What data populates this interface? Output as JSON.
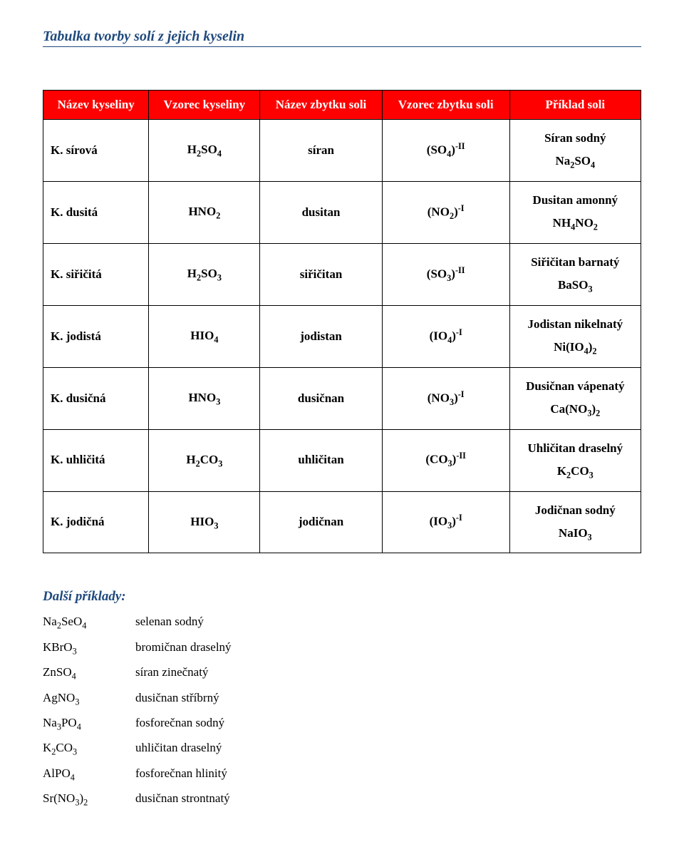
{
  "title": "Tabulka tvorby solí z jejich kyselin",
  "table": {
    "headers": [
      "Název kyseliny",
      "Vzorec kyseliny",
      "Název zbytku soli",
      "Vzorec zbytku soli",
      "Příklad soli"
    ],
    "rows": [
      {
        "acid_name": "K. sírová",
        "acid_formula_html": "H<sub>2</sub>SO<sub>4</sub>",
        "salt_name": "síran",
        "radical_html": "(SO<sub>4</sub>)<sup>-II</sup>",
        "example_html": "Síran sodný<br>Na<sub>2</sub>SO<sub>4</sub>"
      },
      {
        "acid_name": "K. dusitá",
        "acid_formula_html": "HNO<sub>2</sub>",
        "salt_name": "dusitan",
        "radical_html": "(NO<sub>2</sub>)<sup>-I</sup>",
        "example_html": "Dusitan amonný<br>NH<sub>4</sub>NO<sub>2</sub>"
      },
      {
        "acid_name": "K. siřičitá",
        "acid_formula_html": "H<sub>2</sub>SO<sub>3</sub>",
        "salt_name": "siřičitan",
        "radical_html": "(SO<sub>3</sub>)<sup>-II</sup>",
        "example_html": "Siřičitan barnatý<br>BaSO<sub>3</sub>"
      },
      {
        "acid_name": "K. jodistá",
        "acid_formula_html": "HIO<sub>4</sub>",
        "salt_name": "jodistan",
        "radical_html": "(IO<sub>4</sub>)<sup>-I</sup>",
        "example_html": "Jodistan nikelnatý<br>Ni(IO<sub>4</sub>)<sub>2</sub>"
      },
      {
        "acid_name": "K. dusičná",
        "acid_formula_html": "HNO<sub>3</sub>",
        "salt_name": "dusičnan",
        "radical_html": "(NO<sub>3</sub>)<sup>-I</sup>",
        "example_html": "Dusičnan vápenatý<br>Ca(NO<sub>3</sub>)<sub>2</sub>"
      },
      {
        "acid_name": "K. uhličitá",
        "acid_formula_html": "H<sub>2</sub>CO<sub>3</sub>",
        "salt_name": "uhličitan",
        "radical_html": "(CO<sub>3</sub>)<sup>-II</sup>",
        "example_html": "Uhličitan draselný<br>K<sub>2</sub>CO<sub>3</sub>"
      },
      {
        "acid_name": "K. jodičná",
        "acid_formula_html": "HIO<sub>3</sub>",
        "salt_name": "jodičnan",
        "radical_html": "(IO<sub>3</sub>)<sup>-I</sup>",
        "example_html": "Jodičnan sodný<br>NaIO<sub>3</sub>"
      }
    ],
    "header_bg": "#ff0000",
    "header_fg": "#ffffff",
    "cell_bg": "#ffffff",
    "border_color": "#000000"
  },
  "examples": {
    "heading": "Další příklady:",
    "items": [
      {
        "formula_html": "Na<sub>2</sub>SeO<sub>4</sub>",
        "name": "selenan sodný"
      },
      {
        "formula_html": "KBrO<sub>3</sub>",
        "name": "bromičnan draselný"
      },
      {
        "formula_html": "ZnSO<sub>4</sub>",
        "name": "síran zinečnatý"
      },
      {
        "formula_html": "AgNO<sub>3</sub>",
        "name": "dusičnan stříbrný"
      },
      {
        "formula_html": "Na<sub>3</sub>PO<sub>4</sub>",
        "name": "fosforečnan sodný"
      },
      {
        "formula_html": "K<sub>2</sub>CO<sub>3</sub>",
        "name": "uhličitan draselný"
      },
      {
        "formula_html": "AlPO<sub>4</sub>",
        "name": "fosforečnan hlinitý"
      },
      {
        "formula_html": "Sr(NO<sub>3</sub>)<sub>2</sub>",
        "name": "dusičnan strontnatý"
      }
    ]
  },
  "colors": {
    "heading_blue": "#1f497d",
    "background": "#ffffff",
    "text": "#000000"
  }
}
